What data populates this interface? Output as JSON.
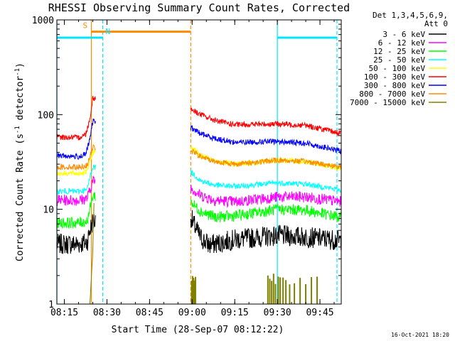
{
  "chart_data": {
    "type": "line",
    "title": "RHESSI Observing Summary Count Rates, Corrected",
    "xlabel": "Start Time (28-Sep-07 08:12:22)",
    "ylabel": "Corrected Count Rate (s⁻¹ detector⁻¹)",
    "ylabel_parts": [
      "Corrected Count Rate (s",
      "-1",
      " detector",
      "-1",
      ")"
    ],
    "y_scale": "log",
    "ylim": [
      1,
      1000
    ],
    "xlim": [
      "08:12:22",
      "09:52:30"
    ],
    "x_ticks": [
      "08:15",
      "08:30",
      "08:45",
      "09:00",
      "09:15",
      "09:30",
      "09:45"
    ],
    "y_ticks": [
      {
        "value": 1,
        "label": "1"
      },
      {
        "value": 10,
        "label": "10"
      },
      {
        "value": 100,
        "label": "100"
      },
      {
        "value": 1000,
        "label": "1000"
      }
    ],
    "detectors": "Det 1,3,4,5,6,9,",
    "attenuator": "Att 0",
    "timestamp": "16-Oct-2021 18:20",
    "legend_position": "right",
    "data_gaps": [
      [
        "08:26:00",
        "08:59:30"
      ]
    ],
    "series": [
      {
        "name": "3 - 6 keV",
        "color": "#000000",
        "values": [
          {
            "t": "08:12:22",
            "v": 4.3
          },
          {
            "t": "08:20:00",
            "v": 4.3
          },
          {
            "t": "08:23:00",
            "v": 4.5
          },
          {
            "t": "08:24:00",
            "v": 6
          },
          {
            "t": "08:25:00",
            "v": 7.5
          },
          {
            "t": "08:59:30",
            "v": 8.5
          },
          {
            "t": "09:00:30",
            "v": 7.0
          },
          {
            "t": "09:03:00",
            "v": 5.0
          },
          {
            "t": "09:06:00",
            "v": 4.2
          },
          {
            "t": "09:15:00",
            "v": 4.8
          },
          {
            "t": "09:30:00",
            "v": 5.3
          },
          {
            "t": "09:40:00",
            "v": 5.1
          },
          {
            "t": "09:52:30",
            "v": 4.7
          }
        ]
      },
      {
        "name": "6 - 12 keV",
        "color": "#ff00ff",
        "values": [
          {
            "t": "08:12:22",
            "v": 12.5
          },
          {
            "t": "08:20:00",
            "v": 12.5
          },
          {
            "t": "08:23:00",
            "v": 13
          },
          {
            "t": "08:24:00",
            "v": 16
          },
          {
            "t": "08:25:00",
            "v": 20
          },
          {
            "t": "08:59:30",
            "v": 17
          },
          {
            "t": "09:03:00",
            "v": 14
          },
          {
            "t": "09:08:00",
            "v": 12.5
          },
          {
            "t": "09:15:00",
            "v": 12
          },
          {
            "t": "09:30:00",
            "v": 13.5
          },
          {
            "t": "09:40:00",
            "v": 13.5
          },
          {
            "t": "09:52:30",
            "v": 12
          }
        ]
      },
      {
        "name": "12 - 25 keV",
        "color": "#00ff00",
        "values": [
          {
            "t": "08:12:22",
            "v": 7.2
          },
          {
            "t": "08:20:00",
            "v": 7.2
          },
          {
            "t": "08:23:00",
            "v": 7.5
          },
          {
            "t": "08:24:00",
            "v": 10
          },
          {
            "t": "08:25:00",
            "v": 14
          },
          {
            "t": "08:59:30",
            "v": 12
          },
          {
            "t": "09:03:00",
            "v": 9.5
          },
          {
            "t": "09:08:00",
            "v": 8.3
          },
          {
            "t": "09:15:00",
            "v": 8.5
          },
          {
            "t": "09:30:00",
            "v": 10
          },
          {
            "t": "09:40:00",
            "v": 9.8
          },
          {
            "t": "09:52:30",
            "v": 8.2
          }
        ]
      },
      {
        "name": "25 - 50 keV",
        "color": "#00ffff",
        "values": [
          {
            "t": "08:12:22",
            "v": 15.5
          },
          {
            "t": "08:20:00",
            "v": 15.5
          },
          {
            "t": "08:23:00",
            "v": 16
          },
          {
            "t": "08:24:00",
            "v": 22
          },
          {
            "t": "08:25:00",
            "v": 28
          },
          {
            "t": "08:59:30",
            "v": 25
          },
          {
            "t": "09:03:00",
            "v": 20
          },
          {
            "t": "09:08:00",
            "v": 18
          },
          {
            "t": "09:15:00",
            "v": 17.5
          },
          {
            "t": "09:30:00",
            "v": 19
          },
          {
            "t": "09:40:00",
            "v": 18.5
          },
          {
            "t": "09:52:30",
            "v": 16
          }
        ]
      },
      {
        "name": "50 - 100 keV",
        "color": "#ffff00",
        "values": [
          {
            "t": "08:12:22",
            "v": 24
          },
          {
            "t": "08:20:00",
            "v": 24
          },
          {
            "t": "08:23:00",
            "v": 25
          },
          {
            "t": "08:24:00",
            "v": 32
          },
          {
            "t": "08:25:00",
            "v": 40
          },
          {
            "t": "08:59:30",
            "v": 46
          },
          {
            "t": "09:03:00",
            "v": 37
          },
          {
            "t": "09:08:00",
            "v": 32
          },
          {
            "t": "09:15:00",
            "v": 30
          },
          {
            "t": "09:30:00",
            "v": 33
          },
          {
            "t": "09:40:00",
            "v": 32
          },
          {
            "t": "09:52:30",
            "v": 27
          }
        ]
      },
      {
        "name": "100 - 300 keV",
        "color": "#ff0000",
        "values": [
          {
            "t": "08:12:22",
            "v": 58
          },
          {
            "t": "08:20:00",
            "v": 57
          },
          {
            "t": "08:22:30",
            "v": 62
          },
          {
            "t": "08:24:00",
            "v": 90
          },
          {
            "t": "08:25:00",
            "v": 150
          },
          {
            "t": "08:59:30",
            "v": 115
          },
          {
            "t": "09:03:00",
            "v": 100
          },
          {
            "t": "09:08:00",
            "v": 87
          },
          {
            "t": "09:15:00",
            "v": 78
          },
          {
            "t": "09:30:00",
            "v": 80
          },
          {
            "t": "09:40:00",
            "v": 77
          },
          {
            "t": "09:52:30",
            "v": 63
          }
        ]
      },
      {
        "name": "300 - 800 keV",
        "color": "#0000ff",
        "values": [
          {
            "t": "08:12:22",
            "v": 37
          },
          {
            "t": "08:20:00",
            "v": 36
          },
          {
            "t": "08:22:30",
            "v": 38
          },
          {
            "t": "08:24:00",
            "v": 55
          },
          {
            "t": "08:25:00",
            "v": 85
          },
          {
            "t": "08:59:30",
            "v": 73
          },
          {
            "t": "09:03:00",
            "v": 63
          },
          {
            "t": "09:08:00",
            "v": 56
          },
          {
            "t": "09:15:00",
            "v": 51
          },
          {
            "t": "09:30:00",
            "v": 52
          },
          {
            "t": "09:40:00",
            "v": 50
          },
          {
            "t": "09:52:30",
            "v": 41
          }
        ]
      },
      {
        "name": "800 - 7000 keV",
        "color": "#ff8c00",
        "values": [
          {
            "t": "08:12:22",
            "v": 28
          },
          {
            "t": "08:20:00",
            "v": 28
          },
          {
            "t": "08:23:00",
            "v": 29
          },
          {
            "t": "08:24:00",
            "v": 36
          },
          {
            "t": "08:25:00",
            "v": 45
          },
          {
            "t": "08:59:30",
            "v": 42
          },
          {
            "t": "09:03:00",
            "v": 36
          },
          {
            "t": "09:08:00",
            "v": 32
          },
          {
            "t": "09:15:00",
            "v": 30
          },
          {
            "t": "09:30:00",
            "v": 33
          },
          {
            "t": "09:40:00",
            "v": 32
          },
          {
            "t": "09:52:30",
            "v": 28
          }
        ]
      },
      {
        "name": "7000 - 15000 keV",
        "color": "#808000",
        "values": [
          {
            "t": "08:12:22",
            "v": 1.0
          },
          {
            "t": "08:24:00",
            "v": 1.0
          },
          {
            "t": "08:25:00",
            "v": 3.5
          },
          {
            "t": "08:25:30",
            "v": 14
          }
        ]
      }
    ],
    "markers": [
      {
        "label": "S",
        "color": "#ff8c00",
        "level": 750,
        "from": "08:24:30",
        "to": "08:59:30"
      },
      {
        "label": "N",
        "color": "#00e5ff",
        "level": 650,
        "from": "08:12:22",
        "to": "08:28:30"
      },
      {
        "label": "",
        "color": "#00e5ff",
        "level": 650,
        "from": "09:30:00",
        "to": "09:51:00"
      }
    ],
    "vlines": [
      {
        "t": "08:24:30",
        "color": "#ff8c00",
        "style": "solid"
      },
      {
        "t": "08:59:30",
        "color": "#ff8c00",
        "style": "dashed"
      },
      {
        "t": "08:12:22",
        "color": "#00e5ff",
        "style": "solid"
      },
      {
        "t": "08:28:30",
        "color": "#00e5ff",
        "style": "dashed"
      },
      {
        "t": "09:30:00",
        "color": "#00e5ff",
        "style": "solid"
      },
      {
        "t": "09:51:00",
        "color": "#00e5ff",
        "style": "dashed"
      }
    ],
    "spikes": {
      "color": "#808000",
      "times": [
        "08:59:50",
        "09:00:10",
        "09:00:30",
        "09:00:50",
        "09:01:10",
        "09:26:40",
        "09:27:20",
        "09:28:00",
        "09:28:40",
        "09:29:20",
        "09:30:20",
        "09:31:00",
        "09:32:00",
        "09:33:00",
        "09:34:20",
        "09:36:00",
        "09:38:00",
        "09:40:00",
        "09:42:00",
        "09:44:00"
      ],
      "value": 1.9
    }
  }
}
